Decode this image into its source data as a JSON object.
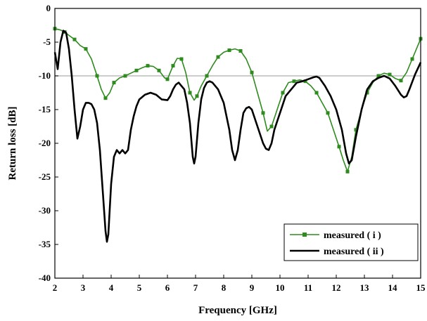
{
  "chart_data": {
    "type": "line",
    "title": "",
    "xlabel": "Frequency [GHz]",
    "ylabel": "Return loss [dB]",
    "xlim": [
      2,
      15
    ],
    "ylim": [
      -40,
      0
    ],
    "x_ticks": [
      2,
      3,
      4,
      5,
      6,
      7,
      8,
      9,
      10,
      11,
      12,
      13,
      14,
      15
    ],
    "y_ticks": [
      0,
      -5,
      -10,
      -15,
      -20,
      -25,
      -30,
      -35,
      -40
    ],
    "x_tick_labels": [
      "2",
      "3",
      "4",
      "5",
      "6",
      "7",
      "8",
      "9",
      "10",
      "11",
      "12",
      "13",
      "14",
      "15"
    ],
    "y_tick_labels": [
      "0",
      "-5",
      "-10",
      "-15",
      "-20",
      "-25",
      "-30",
      "-35",
      "-40"
    ],
    "grid": false,
    "reference_line": {
      "y": -10,
      "color": "#bbbbbb"
    },
    "legend_position": "bottom-right",
    "series": [
      {
        "name": "measured ( i )",
        "color": "#2e8b1e",
        "marker": "square",
        "x": [
          2.0,
          2.2,
          2.35,
          2.5,
          2.7,
          2.9,
          3.1,
          3.3,
          3.5,
          3.65,
          3.8,
          3.95,
          4.1,
          4.3,
          4.5,
          4.7,
          4.9,
          5.1,
          5.3,
          5.5,
          5.7,
          5.9,
          6.0,
          6.1,
          6.2,
          6.35,
          6.5,
          6.65,
          6.8,
          6.95,
          7.05,
          7.2,
          7.4,
          7.6,
          7.8,
          8.0,
          8.2,
          8.4,
          8.6,
          8.8,
          9.0,
          9.2,
          9.4,
          9.55,
          9.7,
          9.9,
          10.1,
          10.3,
          10.5,
          10.7,
          10.9,
          11.1,
          11.3,
          11.5,
          11.7,
          11.9,
          12.1,
          12.25,
          12.4,
          12.55,
          12.7,
          12.9,
          13.1,
          13.3,
          13.5,
          13.7,
          13.9,
          14.1,
          14.3,
          14.5,
          14.7,
          14.9,
          15.0
        ],
        "y": [
          -3.0,
          -3.2,
          -3.5,
          -4.0,
          -4.6,
          -5.5,
          -6.0,
          -7.5,
          -10.0,
          -12.0,
          -13.3,
          -12.5,
          -11.0,
          -10.3,
          -10.0,
          -9.6,
          -9.2,
          -8.8,
          -8.5,
          -8.6,
          -9.2,
          -10.3,
          -10.5,
          -9.5,
          -8.5,
          -7.4,
          -7.5,
          -9.5,
          -12.5,
          -13.6,
          -13.0,
          -11.5,
          -10.0,
          -8.5,
          -7.2,
          -6.5,
          -6.2,
          -6.0,
          -6.3,
          -7.5,
          -9.5,
          -12.5,
          -15.5,
          -18.2,
          -17.5,
          -15.0,
          -12.5,
          -11.0,
          -10.8,
          -10.6,
          -10.8,
          -11.5,
          -12.5,
          -14.0,
          -15.5,
          -18.0,
          -20.5,
          -22.5,
          -24.2,
          -22.0,
          -18.0,
          -15.0,
          -12.5,
          -11.0,
          -10.0,
          -9.6,
          -9.8,
          -10.4,
          -10.7,
          -9.5,
          -7.5,
          -5.5,
          -4.5
        ]
      },
      {
        "name": "measured ( ii )",
        "color": "#000000",
        "marker": "none",
        "x": [
          2.0,
          2.1,
          2.2,
          2.3,
          2.4,
          2.5,
          2.6,
          2.7,
          2.8,
          2.9,
          3.0,
          3.1,
          3.2,
          3.3,
          3.4,
          3.5,
          3.6,
          3.7,
          3.8,
          3.85,
          3.9,
          4.0,
          4.1,
          4.2,
          4.3,
          4.4,
          4.5,
          4.6,
          4.7,
          4.8,
          4.9,
          5.0,
          5.2,
          5.4,
          5.6,
          5.8,
          6.0,
          6.1,
          6.2,
          6.3,
          6.4,
          6.5,
          6.6,
          6.7,
          6.8,
          6.9,
          6.95,
          7.0,
          7.1,
          7.2,
          7.3,
          7.4,
          7.5,
          7.6,
          7.8,
          8.0,
          8.2,
          8.3,
          8.4,
          8.5,
          8.6,
          8.7,
          8.8,
          8.9,
          9.0,
          9.2,
          9.4,
          9.5,
          9.6,
          9.7,
          9.8,
          10.0,
          10.2,
          10.4,
          10.6,
          10.8,
          11.0,
          11.2,
          11.3,
          11.4,
          11.6,
          11.8,
          12.0,
          12.2,
          12.35,
          12.45,
          12.55,
          12.7,
          12.9,
          13.1,
          13.3,
          13.5,
          13.7,
          13.9,
          14.1,
          14.3,
          14.4,
          14.5,
          14.6,
          14.8,
          15.0
        ],
        "y": [
          -6.5,
          -9.0,
          -5.0,
          -3.3,
          -3.6,
          -6.0,
          -10.0,
          -15.0,
          -19.3,
          -17.5,
          -15.0,
          -14.0,
          -14.0,
          -14.2,
          -15.0,
          -17.0,
          -21.0,
          -27.0,
          -33.0,
          -34.6,
          -33.5,
          -26.0,
          -22.0,
          -21.0,
          -21.5,
          -21.0,
          -21.5,
          -21.0,
          -18.0,
          -16.0,
          -14.5,
          -13.5,
          -12.8,
          -12.5,
          -12.8,
          -13.5,
          -13.6,
          -13.0,
          -12.0,
          -11.3,
          -11.0,
          -11.5,
          -12.0,
          -14.0,
          -17.0,
          -22.0,
          -23.0,
          -22.0,
          -17.0,
          -13.5,
          -11.8,
          -11.0,
          -10.8,
          -11.0,
          -12.0,
          -14.0,
          -18.0,
          -21.0,
          -22.5,
          -21.0,
          -18.0,
          -15.5,
          -14.8,
          -14.6,
          -15.0,
          -17.5,
          -20.0,
          -20.8,
          -21.0,
          -20.0,
          -18.0,
          -15.5,
          -13.0,
          -12.0,
          -11.0,
          -10.8,
          -10.5,
          -10.2,
          -10.1,
          -10.3,
          -11.5,
          -13.0,
          -15.0,
          -18.0,
          -21.5,
          -23.0,
          -22.5,
          -19.0,
          -15.0,
          -12.0,
          -10.8,
          -10.3,
          -10.0,
          -10.4,
          -11.5,
          -12.8,
          -13.2,
          -13.0,
          -12.0,
          -9.8,
          -8.0
        ]
      }
    ]
  }
}
